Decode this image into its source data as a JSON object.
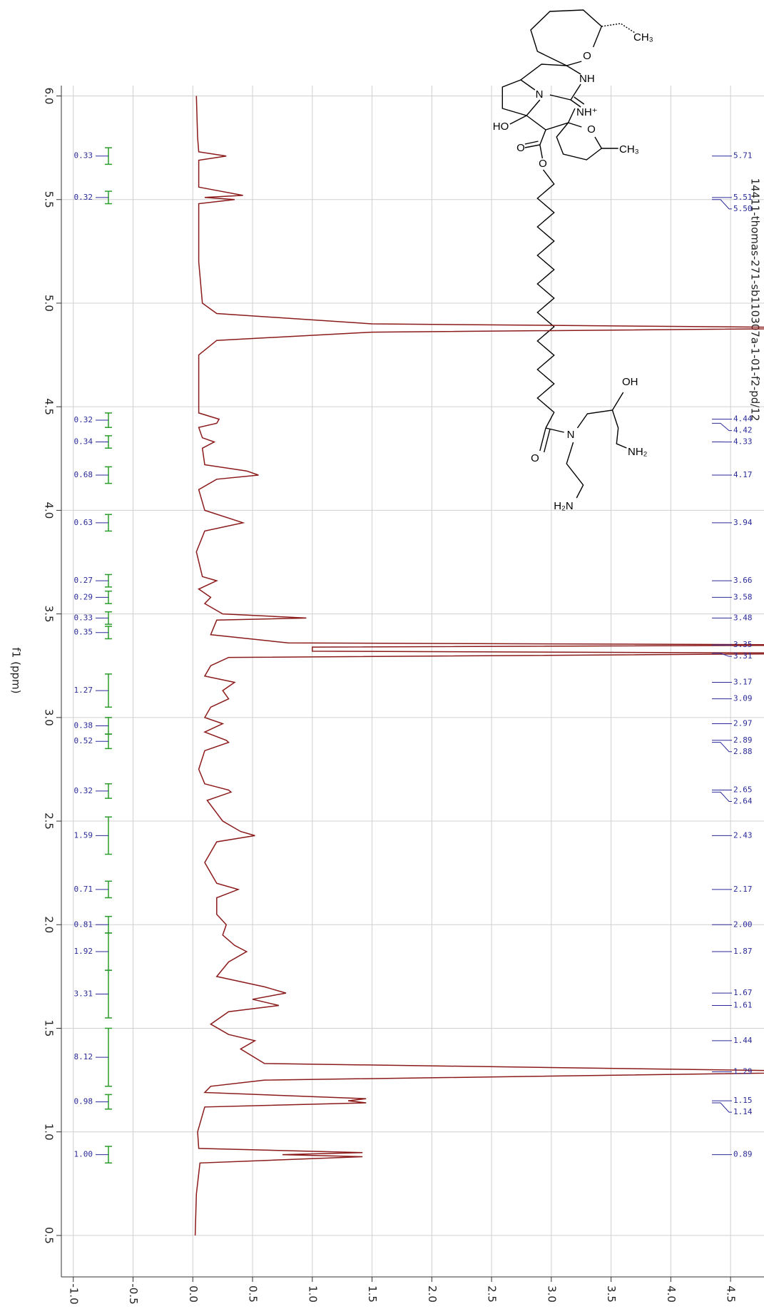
{
  "chart_data": {
    "type": "nmr",
    "file_label": "14411-thomas-271-sb110307a-1-01-f2-pd/12",
    "y_label": "f1 (ppm)",
    "ylim": [
      6.05,
      0.3
    ],
    "yticks": [
      {
        "value": 6,
        "label": "6.0"
      },
      5.5,
      {
        "value": 5,
        "label": "5.0"
      },
      4.5,
      {
        "value": 4,
        "label": "4.0"
      },
      3.5,
      {
        "value": 3,
        "label": "3.0"
      },
      2.5,
      {
        "value": 2,
        "label": "2.0"
      },
      1.5,
      {
        "value": 1,
        "label": "1.0"
      },
      0.5
    ],
    "xlim": [
      -1.1,
      4.75
    ],
    "xticks": [
      {
        "value": -1,
        "label": "-1.0"
      },
      -0.5,
      {
        "value": 0,
        "label": "0.0"
      },
      0.5,
      {
        "value": 1,
        "label": "1.0"
      },
      1.5,
      {
        "value": 2,
        "label": "2.0"
      },
      2.5,
      {
        "value": 3,
        "label": "3.0"
      },
      3.5,
      {
        "value": 4,
        "label": "4.0"
      },
      4.5
    ],
    "grid": true,
    "spectrum": {
      "color": "#8b1a1a",
      "ppm": [
        6.0,
        5.8,
        5.73,
        5.71,
        5.69,
        5.56,
        5.52,
        5.51,
        5.5,
        5.48,
        5.2,
        5.0,
        4.95,
        4.9,
        4.88,
        4.86,
        4.82,
        4.75,
        4.47,
        4.44,
        4.42,
        4.4,
        4.35,
        4.33,
        4.3,
        4.22,
        4.19,
        4.17,
        4.15,
        4.1,
        4.0,
        3.94,
        3.9,
        3.8,
        3.68,
        3.66,
        3.62,
        3.58,
        3.55,
        3.5,
        3.48,
        3.47,
        3.4,
        3.36,
        3.35,
        3.34,
        3.32,
        3.31,
        3.29,
        3.25,
        3.2,
        3.17,
        3.13,
        3.09,
        3.05,
        3.0,
        2.97,
        2.93,
        2.89,
        2.88,
        2.84,
        2.75,
        2.68,
        2.65,
        2.64,
        2.6,
        2.5,
        2.45,
        2.43,
        2.4,
        2.3,
        2.2,
        2.17,
        2.13,
        2.05,
        2.0,
        1.95,
        1.9,
        1.87,
        1.82,
        1.75,
        1.7,
        1.67,
        1.64,
        1.61,
        1.58,
        1.52,
        1.47,
        1.44,
        1.4,
        1.33,
        1.29,
        1.25,
        1.22,
        1.19,
        1.16,
        1.15,
        1.14,
        1.12,
        1.0,
        0.92,
        0.9,
        0.89,
        0.88,
        0.85,
        0.7,
        0.5
      ],
      "intensity": [
        0.03,
        0.04,
        0.05,
        0.28,
        0.05,
        0.05,
        0.42,
        0.1,
        0.35,
        0.05,
        0.05,
        0.08,
        0.2,
        1.5,
        5.6,
        1.5,
        0.2,
        0.05,
        0.05,
        0.22,
        0.2,
        0.05,
        0.08,
        0.18,
        0.08,
        0.1,
        0.45,
        0.55,
        0.2,
        0.05,
        0.1,
        0.42,
        0.1,
        0.03,
        0.08,
        0.2,
        0.05,
        0.15,
        0.1,
        0.25,
        0.95,
        0.2,
        0.15,
        0.8,
        5.6,
        1.0,
        1.0,
        5.6,
        0.3,
        0.15,
        0.1,
        0.35,
        0.25,
        0.3,
        0.15,
        0.1,
        0.25,
        0.1,
        0.28,
        0.3,
        0.1,
        0.05,
        0.1,
        0.3,
        0.32,
        0.12,
        0.25,
        0.4,
        0.52,
        0.2,
        0.1,
        0.2,
        0.38,
        0.2,
        0.2,
        0.28,
        0.25,
        0.35,
        0.45,
        0.3,
        0.2,
        0.6,
        0.78,
        0.5,
        0.72,
        0.3,
        0.15,
        0.3,
        0.52,
        0.4,
        0.6,
        5.6,
        0.6,
        0.15,
        0.1,
        1.45,
        1.3,
        1.45,
        0.1,
        0.04,
        0.05,
        1.42,
        0.75,
        1.42,
        0.06,
        0.03,
        0.02
      ]
    },
    "peaks": [
      {
        "value": 5.71,
        "label": "5.71"
      },
      {
        "value": 5.51,
        "label": "5.51"
      },
      {
        "value": 5.5,
        "label": "5.50"
      },
      {
        "value": 4.44,
        "label": "4.44"
      },
      {
        "value": 4.42,
        "label": "4.42"
      },
      {
        "value": 4.33,
        "label": "4.33"
      },
      {
        "value": 4.17,
        "label": "4.17"
      },
      {
        "value": 3.94,
        "label": "3.94"
      },
      {
        "value": 3.66,
        "label": "3.66"
      },
      {
        "value": 3.58,
        "label": "3.58"
      },
      {
        "value": 3.48,
        "label": "3.48"
      },
      {
        "value": 3.35,
        "label": "3.35"
      },
      {
        "value": 3.31,
        "label": "3.31"
      },
      {
        "value": 3.17,
        "label": "3.17"
      },
      {
        "value": 3.09,
        "label": "3.09"
      },
      {
        "value": 2.97,
        "label": "2.97"
      },
      {
        "value": 2.89,
        "label": "2.89"
      },
      {
        "value": 2.88,
        "label": "2.88"
      },
      {
        "value": 2.65,
        "label": "2.65"
      },
      {
        "value": 2.64,
        "label": "2.64"
      },
      {
        "value": 2.43,
        "label": "2.43"
      },
      {
        "value": 2.17,
        "label": "2.17"
      },
      {
        "value": 2,
        "label": "2.00"
      },
      {
        "value": 1.87,
        "label": "1.87"
      },
      {
        "value": 1.67,
        "label": "1.67"
      },
      {
        "value": 1.61,
        "label": "1.61"
      },
      {
        "value": 1.44,
        "label": "1.44"
      },
      {
        "value": 1.29,
        "label": "1.29"
      },
      {
        "value": 1.15,
        "label": "1.15"
      },
      {
        "value": 1.14,
        "label": "1.14"
      },
      {
        "value": 0.89,
        "label": "0.89"
      }
    ],
    "integrals": {
      "color": "#2a9d2a",
      "values": [
        0.33,
        0.32,
        0.32,
        0.34,
        0.68,
        0.63,
        0.27,
        0.29,
        0.33,
        0.35,
        1.27,
        0.38,
        0.52,
        0.32,
        1.59,
        0.71,
        0.81,
        1.92,
        3.31,
        8.12,
        0.98,
        1.0
      ],
      "value_labels": [
        "0.33",
        "0.32",
        "0.32",
        "0.34",
        "0.68",
        "0.63",
        "0.27",
        "0.29",
        "0.33",
        "0.35",
        "1.27",
        "0.38",
        "0.52",
        "0.32",
        "1.59",
        "0.71",
        "0.81",
        "1.92",
        "3.31",
        "8.12",
        "0.98",
        "1.00"
      ],
      "ranges": [
        [
          5.75,
          5.67
        ],
        [
          5.54,
          5.48
        ],
        [
          4.47,
          4.4
        ],
        [
          4.36,
          4.3
        ],
        [
          4.21,
          4.13
        ],
        [
          3.98,
          3.9
        ],
        [
          3.69,
          3.63
        ],
        [
          3.61,
          3.55
        ],
        [
          3.51,
          3.45
        ],
        [
          3.44,
          3.38
        ],
        [
          3.21,
          3.05
        ],
        [
          3.0,
          2.92
        ],
        [
          2.92,
          2.85
        ],
        [
          2.68,
          2.61
        ],
        [
          2.52,
          2.34
        ],
        [
          2.21,
          2.13
        ],
        [
          2.04,
          1.96
        ],
        [
          1.96,
          1.78
        ],
        [
          1.78,
          1.55
        ],
        [
          1.5,
          1.22
        ],
        [
          1.18,
          1.11
        ],
        [
          0.93,
          0.85
        ]
      ]
    }
  },
  "structure": {
    "labels": [
      "O",
      "NH",
      "N",
      "NH⁺",
      "HO",
      "O",
      "CH₃",
      "O",
      "O",
      "CH₃",
      "OH",
      "O",
      "N",
      "NH₂",
      "H₂N"
    ]
  }
}
